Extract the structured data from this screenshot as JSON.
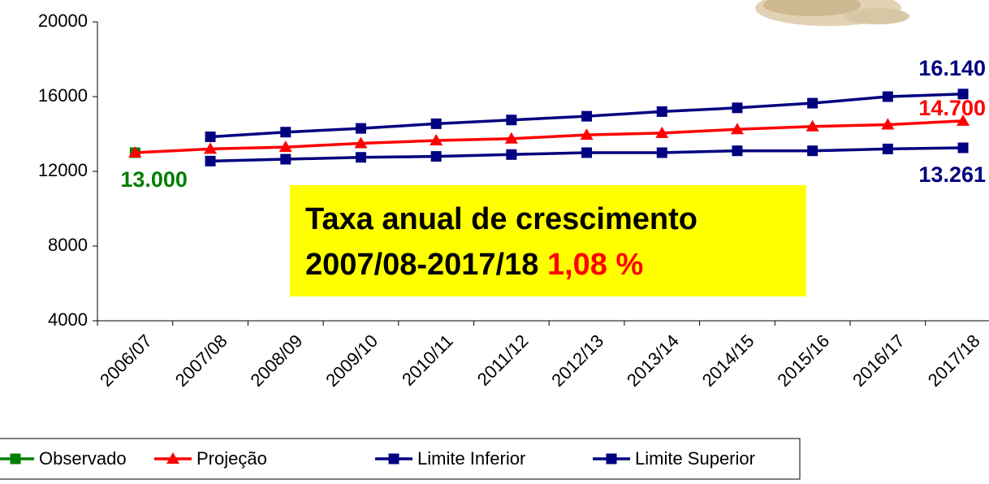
{
  "chart_data": {
    "type": "line",
    "categories": [
      "2006/07",
      "2007/08",
      "2008/09",
      "2009/10",
      "2010/11",
      "2011/12",
      "2012/13",
      "2013/14",
      "2014/15",
      "2015/16",
      "2016/17",
      "2017/18"
    ],
    "series": [
      {
        "name": "Observado",
        "color": "#008000",
        "marker": "square",
        "values": [
          13000,
          null,
          null,
          null,
          null,
          null,
          null,
          null,
          null,
          null,
          null,
          null
        ],
        "value_labels": [
          "13.000",
          null,
          null,
          null,
          null,
          null,
          null,
          null,
          null,
          null,
          null,
          null
        ]
      },
      {
        "name": "Projeção",
        "color": "#ff0000",
        "marker": "triangle",
        "values": [
          13000,
          13200,
          13300,
          13500,
          13650,
          13750,
          13950,
          14050,
          14250,
          14400,
          14500,
          14700
        ],
        "value_labels": [
          null,
          null,
          null,
          null,
          null,
          null,
          null,
          null,
          null,
          null,
          null,
          "14.700"
        ]
      },
      {
        "name": "Limite Inferior",
        "color": "#000080",
        "marker": "square",
        "values": [
          null,
          12550,
          12650,
          12750,
          12800,
          12900,
          13000,
          13000,
          13100,
          13100,
          13200,
          13261
        ],
        "value_labels": [
          null,
          null,
          null,
          null,
          null,
          null,
          null,
          null,
          null,
          null,
          null,
          "13.261"
        ]
      },
      {
        "name": "Limite Superior",
        "color": "#000080",
        "marker": "square",
        "values": [
          null,
          13850,
          14100,
          14300,
          14550,
          14750,
          14950,
          15200,
          15400,
          15650,
          16000,
          16140
        ],
        "value_labels": [
          null,
          null,
          null,
          null,
          null,
          null,
          null,
          null,
          null,
          null,
          null,
          "16.140"
        ]
      }
    ],
    "ylim": [
      4000,
      20000
    ],
    "yticks": [
      4000,
      8000,
      12000,
      16000,
      20000
    ],
    "annotation": {
      "lines": [
        "Taxa anual de crescimento",
        "2007/08-2017/18"
      ],
      "highlight": "1,08 %"
    }
  }
}
